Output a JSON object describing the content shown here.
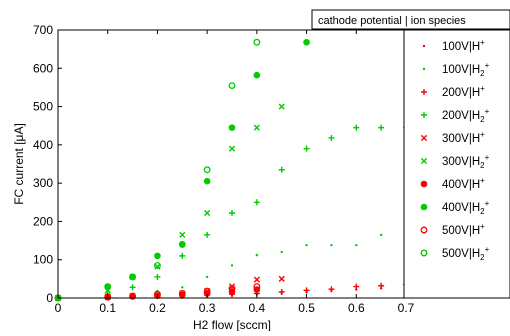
{
  "chart_data": {
    "type": "scatter",
    "title": "",
    "xlabel": "H2 flow [sccm]",
    "ylabel": "FC current [μA]",
    "xlim": [
      0,
      0.7
    ],
    "ylim": [
      0,
      700
    ],
    "xticks": [
      0,
      0.1,
      0.2,
      0.3,
      0.4,
      0.5,
      0.6,
      0.7
    ],
    "xtick_labels": [
      "0",
      "0.1",
      "0.2",
      "0.3",
      "0.4",
      "0.5",
      "0.6",
      "0.7"
    ],
    "yticks": [
      0,
      100,
      200,
      300,
      400,
      500,
      600,
      700
    ],
    "ytick_labels": [
      "0",
      "100",
      "200",
      "300",
      "400",
      "500",
      "600",
      "700"
    ],
    "grid": false,
    "legend_title": "cathode potential | ion species",
    "legend_placement": "right, partly outside plot",
    "series": [
      {
        "name": "100V|H+",
        "label_main": "100V|H",
        "label_sub": "",
        "color": "#ff0000",
        "marker": "dot",
        "x": [
          0,
          0.1,
          0.15,
          0.2,
          0.25,
          0.3,
          0.35,
          0.4,
          0.45,
          0.5,
          0.55,
          0.6,
          0.65,
          0.7
        ],
        "y": [
          0,
          1,
          2,
          3,
          4,
          5,
          7,
          10,
          12,
          15,
          19,
          22,
          25,
          28
        ]
      },
      {
        "name": "100V|H2+",
        "label_main": "100V|H",
        "label_sub": "2",
        "color": "#00cc00",
        "marker": "dot",
        "x": [
          0,
          0.1,
          0.15,
          0.2,
          0.25,
          0.3,
          0.35,
          0.4,
          0.45,
          0.5,
          0.55,
          0.6,
          0.65,
          0.7
        ],
        "y": [
          0,
          5,
          10,
          18,
          28,
          55,
          85,
          112,
          120,
          138,
          138,
          138,
          165,
          170
        ]
      },
      {
        "name": "200V|H+",
        "label_main": "200V|H",
        "label_sub": "",
        "color": "#ff0000",
        "marker": "plus",
        "x": [
          0,
          0.1,
          0.15,
          0.2,
          0.25,
          0.3,
          0.35,
          0.4,
          0.45,
          0.5,
          0.55,
          0.6,
          0.65,
          0.7
        ],
        "y": [
          0,
          1,
          3,
          5,
          6,
          8,
          10,
          12,
          16,
          20,
          23,
          30,
          32,
          35
        ]
      },
      {
        "name": "200V|H2+",
        "label_main": "200V|H",
        "label_sub": "2",
        "color": "#00cc00",
        "marker": "plus",
        "x": [
          0,
          0.1,
          0.15,
          0.2,
          0.25,
          0.3,
          0.35,
          0.4,
          0.45,
          0.5,
          0.55,
          0.6,
          0.65,
          0.7
        ],
        "y": [
          0,
          10,
          28,
          55,
          110,
          165,
          222,
          250,
          335,
          390,
          418,
          445,
          445,
          445
        ]
      },
      {
        "name": "300V|H+",
        "label_main": "300V|H",
        "label_sub": "",
        "color": "#ff0000",
        "marker": "x",
        "x": [
          0,
          0.1,
          0.15,
          0.2,
          0.25,
          0.3,
          0.35,
          0.4,
          0.45
        ],
        "y": [
          0,
          2,
          5,
          8,
          12,
          18,
          30,
          48,
          50
        ]
      },
      {
        "name": "300V|H2+",
        "label_main": "300V|H",
        "label_sub": "2",
        "color": "#00cc00",
        "marker": "x",
        "x": [
          0,
          0.1,
          0.15,
          0.2,
          0.25,
          0.3,
          0.35,
          0.4,
          0.45
        ],
        "y": [
          0,
          20,
          55,
          82,
          165,
          222,
          390,
          445,
          500
        ]
      },
      {
        "name": "400V|H+",
        "label_main": "400V|H",
        "label_sub": "",
        "color": "#ff0000",
        "marker": "filled-circle",
        "x": [
          0,
          0.1,
          0.15,
          0.2,
          0.25,
          0.3,
          0.35,
          0.4
        ],
        "y": [
          0,
          2,
          4,
          6,
          8,
          12,
          17,
          22
        ]
      },
      {
        "name": "400V|H2+",
        "label_main": "400V|H",
        "label_sub": "2",
        "color": "#00cc00",
        "marker": "filled-circle",
        "x": [
          0,
          0.1,
          0.15,
          0.2,
          0.25,
          0.3,
          0.35,
          0.4,
          0.5
        ],
        "y": [
          0,
          28,
          55,
          110,
          140,
          305,
          445,
          582,
          668
        ]
      },
      {
        "name": "500V|H+",
        "label_main": "500V|H",
        "label_sub": "",
        "color": "#ff0000",
        "marker": "open-circle",
        "x": [
          0,
          0.1,
          0.15,
          0.2,
          0.25,
          0.3,
          0.35,
          0.4
        ],
        "y": [
          0,
          3,
          5,
          10,
          12,
          18,
          25,
          30
        ]
      },
      {
        "name": "500V|H2+",
        "label_main": "500V|H",
        "label_sub": "2",
        "color": "#00cc00",
        "marker": "open-circle",
        "x": [
          0,
          0.1,
          0.15,
          0.2,
          0.25,
          0.3,
          0.35,
          0.4
        ],
        "y": [
          0,
          30,
          55,
          85,
          140,
          335,
          555,
          668
        ]
      }
    ]
  }
}
